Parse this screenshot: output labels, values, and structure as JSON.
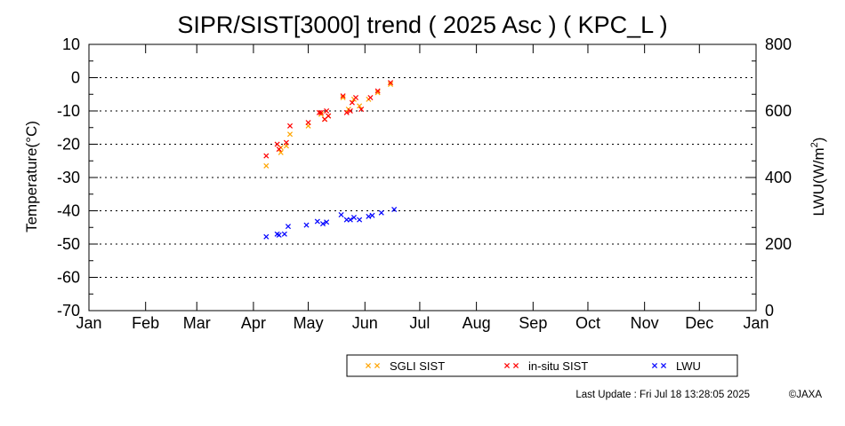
{
  "chart_data": {
    "type": "scatter",
    "title": "SIPR/SIST[3000] trend ( 2025 Asc ) ( KPC_L )",
    "xlabel": "",
    "ylabel_left": "Temperature(°C)",
    "ylabel_right_base": "LWU(W/m",
    "ylabel_right_sup": "2",
    "ylabel_right_end": ")",
    "x_ticks": [
      "Jan",
      "Feb",
      "Mar",
      "Apr",
      "May",
      "Jun",
      "Jul",
      "Aug",
      "Sep",
      "Oct",
      "Nov",
      "Dec",
      "Jan"
    ],
    "xlim": [
      "2025-01-01",
      "2026-01-01"
    ],
    "ylim_left": [
      -70,
      10
    ],
    "y_ticks_left": [
      10,
      0,
      -10,
      -20,
      -30,
      -40,
      -50,
      -60,
      -70
    ],
    "ylim_right": [
      0,
      800
    ],
    "y_ticks_right": [
      800,
      600,
      400,
      200,
      0
    ],
    "grid": "horizontal dotted",
    "legend_position": "bottom",
    "series": [
      {
        "name": "SGLI SIST",
        "axis": "left",
        "color": "#ffa500",
        "marker": "x",
        "points": [
          [
            "2025-04-08",
            -26.5
          ],
          [
            "2025-04-16",
            -22.5
          ],
          [
            "2025-04-16",
            -21
          ],
          [
            "2025-04-19",
            -20.5
          ],
          [
            "2025-04-21",
            -17
          ],
          [
            "2025-05-01",
            -14.5
          ],
          [
            "2025-05-08",
            -11
          ],
          [
            "2025-05-10",
            -12.5
          ],
          [
            "2025-05-12",
            -11.5
          ],
          [
            "2025-05-20",
            -6
          ],
          [
            "2025-05-23",
            -9.5
          ],
          [
            "2025-05-26",
            -6.5
          ],
          [
            "2025-05-29",
            -8.5
          ],
          [
            "2025-06-03",
            -6.5
          ],
          [
            "2025-06-08",
            -4.5
          ],
          [
            "2025-06-15",
            -2
          ]
        ]
      },
      {
        "name": "in-situ SIST",
        "axis": "left",
        "color": "#ff0000",
        "marker": "x",
        "points": [
          [
            "2025-04-08",
            -23.5
          ],
          [
            "2025-04-14",
            -20
          ],
          [
            "2025-04-15",
            -21.5
          ],
          [
            "2025-04-19",
            -19.5
          ],
          [
            "2025-04-21",
            -14.5
          ],
          [
            "2025-05-01",
            -13.5
          ],
          [
            "2025-05-07",
            -10.5
          ],
          [
            "2025-05-08",
            -10.5
          ],
          [
            "2025-05-10",
            -12.5
          ],
          [
            "2025-05-11",
            -10
          ],
          [
            "2025-05-12",
            -11.5
          ],
          [
            "2025-05-20",
            -5.5
          ],
          [
            "2025-05-22",
            -10.5
          ],
          [
            "2025-05-24",
            -10
          ],
          [
            "2025-05-25",
            -7.5
          ],
          [
            "2025-05-27",
            -6
          ],
          [
            "2025-05-30",
            -9.5
          ],
          [
            "2025-06-04",
            -6
          ],
          [
            "2025-06-08",
            -4
          ],
          [
            "2025-06-15",
            -1.5
          ]
        ]
      },
      {
        "name": "LWU",
        "axis": "right",
        "color": "#0000ff",
        "marker": "x",
        "points": [
          [
            "2025-04-08",
            222
          ],
          [
            "2025-04-14",
            230
          ],
          [
            "2025-04-15",
            227
          ],
          [
            "2025-04-18",
            230
          ],
          [
            "2025-04-20",
            253
          ],
          [
            "2025-04-30",
            257
          ],
          [
            "2025-05-06",
            268
          ],
          [
            "2025-05-09",
            261
          ],
          [
            "2025-05-11",
            266
          ],
          [
            "2025-05-19",
            288
          ],
          [
            "2025-05-22",
            273
          ],
          [
            "2025-05-24",
            273
          ],
          [
            "2025-05-26",
            280
          ],
          [
            "2025-05-29",
            273
          ],
          [
            "2025-06-03",
            283
          ],
          [
            "2025-06-05",
            286
          ],
          [
            "2025-06-10",
            294
          ],
          [
            "2025-06-17",
            304
          ]
        ]
      }
    ]
  },
  "footer": {
    "last_update": "Last Update : Fri Jul 18 13:28:05 2025",
    "copyright": "©JAXA"
  }
}
